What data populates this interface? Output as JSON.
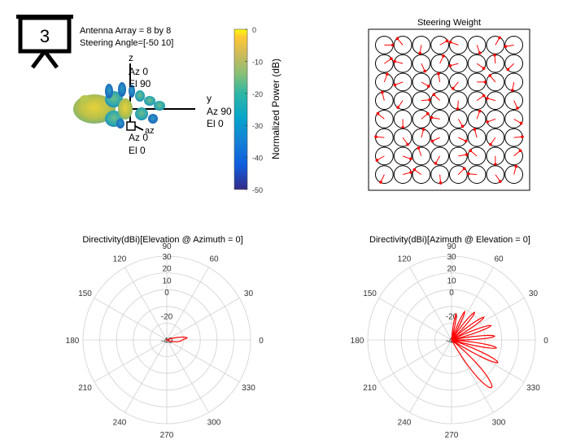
{
  "slide_badge": {
    "number": "3",
    "icon": "presentation-board-icon"
  },
  "antenna_info": {
    "line1": "Antenna Array = 8 by 8",
    "line2": "Steering Angle=[-50 10]"
  },
  "pattern3d": {
    "axis_z": {
      "label": "z",
      "az": "Az 0",
      "el": "El 90"
    },
    "axis_y": {
      "label": "y",
      "az": "Az 90",
      "el": "El 0"
    },
    "axis_x": {
      "label": "x",
      "az": "Az 0",
      "el": "El 0"
    },
    "az_marker": "az"
  },
  "colorbar": {
    "label": "Normalized Power (dB)",
    "ticks": [
      "0",
      "-10",
      "-20",
      "-30",
      "-40",
      "-50"
    ],
    "range": [
      -50,
      0
    ],
    "colormap": "parula"
  },
  "steering_weight": {
    "title": "Steering Weight",
    "rows": 8,
    "cols": 8,
    "circle_color": "#000000",
    "arrow_color": "#ff0000",
    "phase_step_x_deg": 130,
    "phase_step_y_deg": 35
  },
  "chart_data": [
    {
      "type": "polar",
      "title": "Directivity(dBi)[Elevation @ Azimuth = 0]",
      "angle_ticks": [
        "0",
        "30",
        "60",
        "90",
        "120",
        "150",
        "180",
        "210",
        "240",
        "270",
        "300",
        "330"
      ],
      "radial_ticks": [
        "30",
        "20",
        "10",
        "0",
        "-20",
        "-40"
      ],
      "rlim": [
        -40,
        30
      ],
      "series": [
        {
          "color": "#ff0000",
          "points": [
            {
              "angle": 0,
              "r": -27
            },
            {
              "angle": 2,
              "r": -26
            },
            {
              "angle": 4,
              "r": -24
            },
            {
              "angle": 6,
              "r": -23
            },
            {
              "angle": 8,
              "r": -24
            },
            {
              "angle": 10,
              "r": -26
            },
            {
              "angle": 14,
              "r": -32
            },
            {
              "angle": 20,
              "r": -37
            },
            {
              "angle": 60,
              "r": -40
            },
            {
              "angle": 180,
              "r": -40
            },
            {
              "angle": 300,
              "r": -40
            },
            {
              "angle": 340,
              "r": -36
            },
            {
              "angle": 350,
              "r": -31
            },
            {
              "angle": 356,
              "r": -28
            },
            {
              "angle": 360,
              "r": -27
            }
          ]
        }
      ]
    },
    {
      "type": "polar",
      "title": "Directivity(dBi)[Azimuth @ Elevation = 0]",
      "angle_ticks": [
        "0",
        "30",
        "60",
        "90",
        "120",
        "150",
        "180",
        "210",
        "240",
        "270",
        "300",
        "330"
      ],
      "radial_ticks": [
        "30",
        "20",
        "10",
        "0",
        "-20",
        "-40"
      ],
      "rlim": [
        -40,
        30
      ],
      "series": [
        {
          "color": "#ff0000",
          "lobes": [
            {
              "center": 310,
              "width": 22,
              "peak": 12
            },
            {
              "center": 334,
              "width": 14,
              "peak": 3
            },
            {
              "center": 350,
              "width": 12,
              "peak": -2
            },
            {
              "center": 5,
              "width": 12,
              "peak": -4
            },
            {
              "center": 20,
              "width": 12,
              "peak": -5
            },
            {
              "center": 35,
              "width": 12,
              "peak": -7
            },
            {
              "center": 50,
              "width": 12,
              "peak": -10
            },
            {
              "center": 65,
              "width": 10,
              "peak": -14
            },
            {
              "center": 80,
              "width": 10,
              "peak": -18
            }
          ],
          "floor": -40
        }
      ]
    }
  ]
}
